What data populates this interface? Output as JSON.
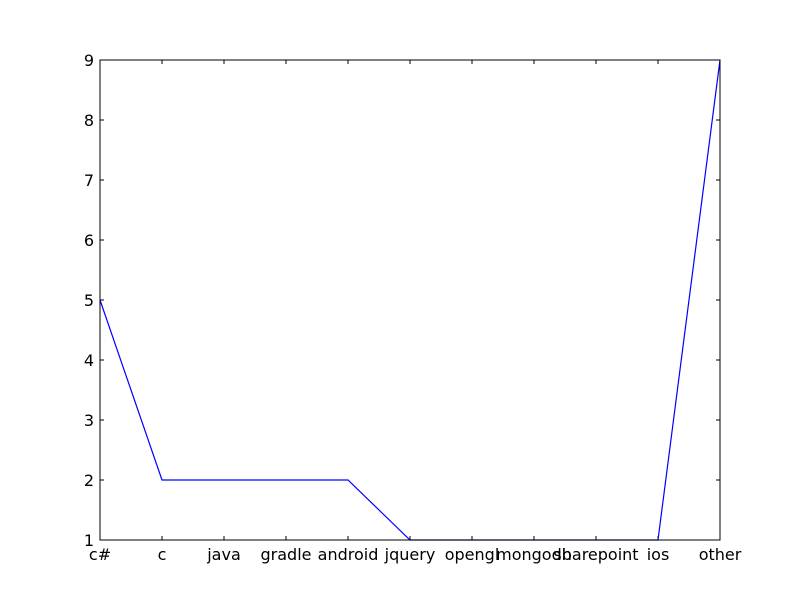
{
  "chart_data": {
    "type": "line",
    "categories": [
      "c#",
      "c",
      "java",
      "gradle",
      "android",
      "jquery",
      "opengl",
      "mongodb",
      "sharepoint",
      "ios",
      "other"
    ],
    "series": [
      {
        "values": [
          5,
          2,
          2,
          2,
          2,
          1,
          1,
          1,
          1,
          1,
          9
        ]
      }
    ],
    "ylim": [
      1,
      9
    ],
    "yticks": [
      1,
      2,
      3,
      4,
      5,
      6,
      7,
      8,
      9
    ],
    "grid": false,
    "colors": {
      "line": "#0000ff",
      "axis": "#000000",
      "background": "#ffffff"
    }
  }
}
